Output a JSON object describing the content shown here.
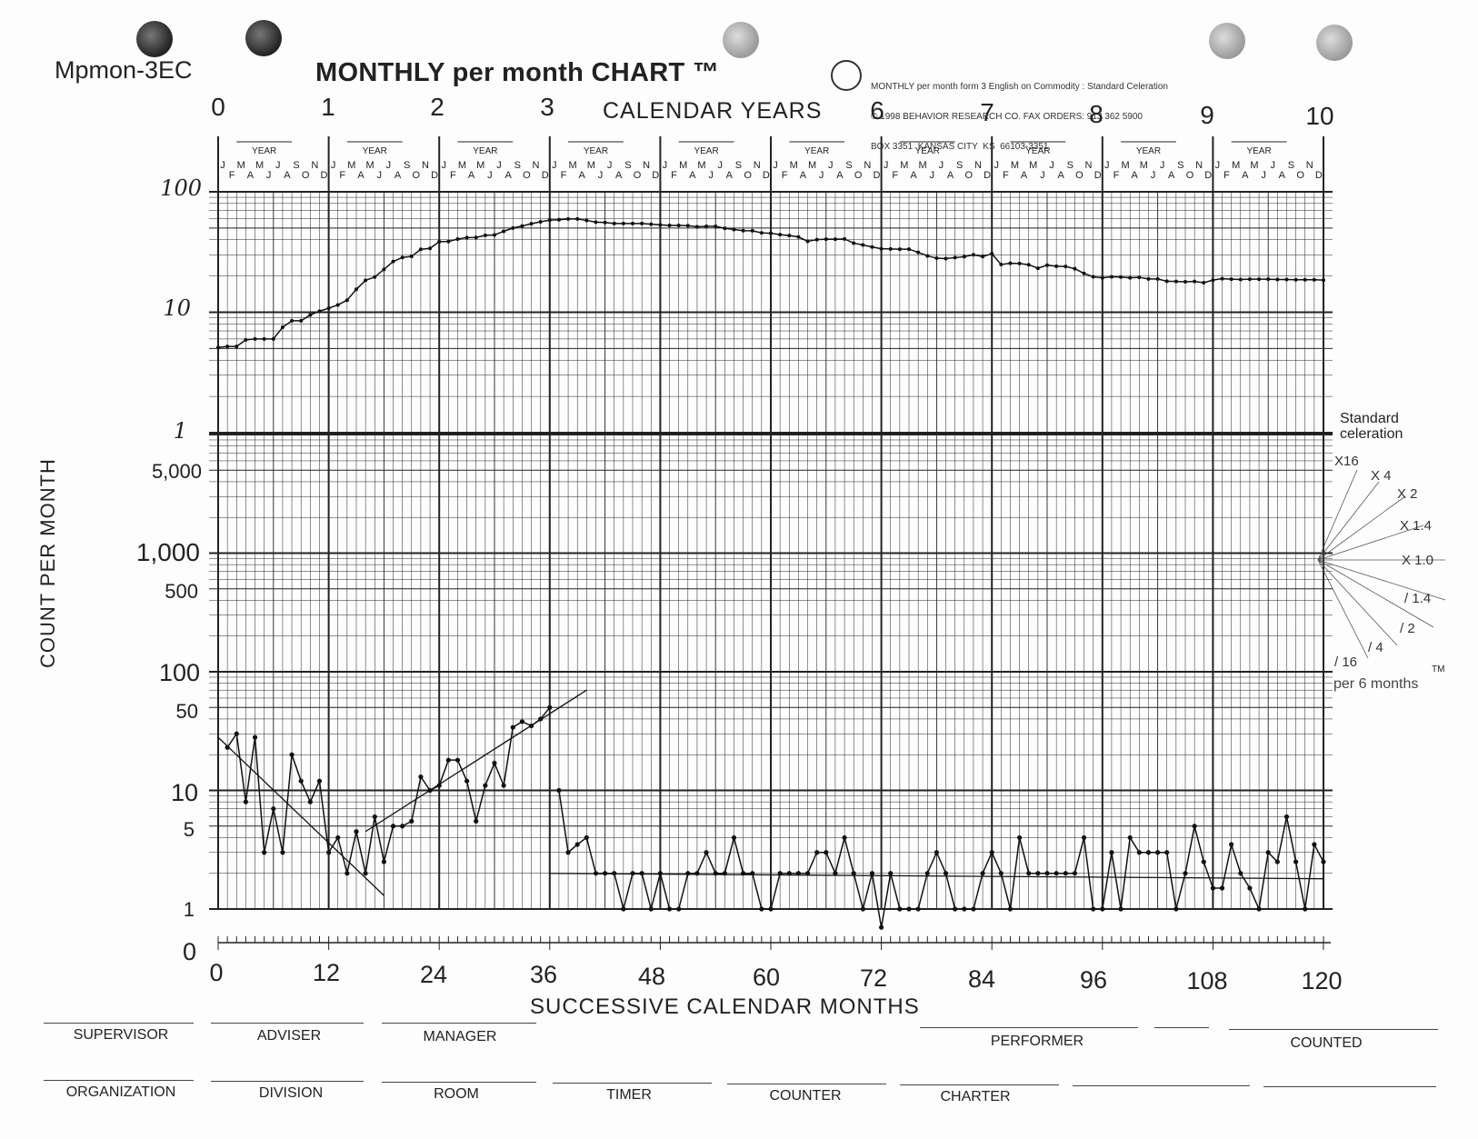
{
  "header": {
    "form_code": "Mpmon-3EC",
    "title": "MONTHLY per month CHART ™",
    "copyright": [
      "MONTHLY per month form 3 English on Commodity : Standard Celeration",
      "© 1998 BEHAVIOR RESEARCH CO. FAX ORDERS: 913 362 5900",
      "BOX 3351  KANSAS CITY  KS  66103-3351"
    ],
    "calendar_years_label": "CALENDAR YEARS",
    "year_numbers": [
      "0",
      "1",
      "2",
      "3",
      "6",
      "7",
      "8",
      "9",
      "10"
    ],
    "year_word": "YEAR",
    "month_row_top": [
      "J",
      "M",
      "M",
      "J",
      "S",
      "N"
    ],
    "month_row_bottom": [
      "F",
      "A",
      "J",
      "A",
      "O",
      "D"
    ]
  },
  "axes": {
    "ylabel": "COUNT PER MONTH",
    "xlabel": "SUCCESSIVE CALENDAR MONTHS",
    "upper_ticks": [
      "100",
      "10",
      "1"
    ],
    "lower_ticks": [
      "5,000",
      "1,000",
      "500",
      "100",
      "50",
      "10",
      "5",
      "1",
      "0"
    ],
    "x_ticks": [
      "0",
      "12",
      "24",
      "36",
      "48",
      "60",
      "72",
      "84",
      "96",
      "108",
      "120"
    ]
  },
  "legend": {
    "title": "Standard celeration",
    "fans": [
      "X16",
      "X 4",
      "X 2",
      "X 1.4",
      "X 1.0",
      "/ 1.4",
      "/ 2",
      "/ 4",
      "/ 16"
    ],
    "per": "per 6 months",
    "tm": "TM"
  },
  "footer": {
    "row1": [
      "SUPERVISOR",
      "ADVISER",
      "MANAGER",
      "PERFORMER",
      "COUNTED"
    ],
    "row2": [
      "ORGANIZATION",
      "DIVISION",
      "ROOM",
      "TIMER",
      "COUNTER",
      "CHARTER"
    ]
  },
  "chart_data": {
    "type": "line",
    "xlabel": "SUCCESSIVE CALENDAR MONTHS",
    "ylabel": "COUNT PER MONTH",
    "xlim": [
      0,
      120
    ],
    "upper_scale": {
      "ylim": [
        0.6,
        100
      ],
      "log": true
    },
    "lower_scale": {
      "ylim": [
        1,
        10000
      ],
      "log": true
    },
    "series": [
      {
        "scale": "upper",
        "x": [
          0,
          1,
          2,
          3,
          4,
          5,
          6,
          7,
          8,
          9,
          10,
          11,
          12,
          13,
          14,
          15,
          16,
          17,
          18,
          19,
          20,
          21,
          22,
          23,
          24,
          25,
          26,
          27,
          28,
          29,
          30,
          31,
          32,
          33,
          34,
          35,
          36,
          37,
          38,
          39,
          40,
          41,
          42,
          43,
          44,
          45,
          46,
          47,
          48,
          49,
          50,
          51,
          52,
          53,
          54,
          55,
          56,
          57,
          58,
          59,
          60,
          61,
          62,
          63,
          64,
          65,
          66,
          67,
          68,
          69,
          70,
          71,
          72,
          73,
          74,
          75,
          76,
          77,
          78,
          79,
          80,
          81,
          82,
          83,
          84,
          85,
          86,
          87,
          88,
          89,
          90,
          91,
          92,
          93,
          94,
          95,
          96,
          97,
          98,
          99,
          100,
          101,
          102,
          103,
          104,
          105,
          106,
          107,
          108,
          109,
          110,
          111,
          112,
          113,
          114,
          115,
          116,
          117,
          118,
          119,
          120
        ],
        "values": [
          5.1,
          5.2,
          5.2,
          5.9,
          6.0,
          6.0,
          6.0,
          7.5,
          8.5,
          8.5,
          9.5,
          10.2,
          10.8,
          11.5,
          12.6,
          15.5,
          18.4,
          19.6,
          22.7,
          26.4,
          28.5,
          29.1,
          33.3,
          33.9,
          38.5,
          38.7,
          40.5,
          41.7,
          41.8,
          43.5,
          43.8,
          47.0,
          50.0,
          52.0,
          54.3,
          56.4,
          58.2,
          58.6,
          59.5,
          59.5,
          57.9,
          56.0,
          55.6,
          54.5,
          54.5,
          54.5,
          54.5,
          53.9,
          53.2,
          52.6,
          52.6,
          52.3,
          51.2,
          51.7,
          51.7,
          49.8,
          48.6,
          47.6,
          47.5,
          45.6,
          45.3,
          44.1,
          43.3,
          42.2,
          38.8,
          40.1,
          40.4,
          40.4,
          40.6,
          37.5,
          36.2,
          34.8,
          33.7,
          33.5,
          33.4,
          33.4,
          31.4,
          29.4,
          28.1,
          27.9,
          28.4,
          28.9,
          30.0,
          29.0,
          30.6,
          24.9,
          25.5,
          25.4,
          24.8,
          23.2,
          24.6,
          24.1,
          24.0,
          23.0,
          21.0,
          19.7,
          19.3,
          19.7,
          19.6,
          19.3,
          19.5,
          18.9,
          18.9,
          18.1,
          18.0,
          17.9,
          18.0,
          17.6,
          18.5,
          19.0,
          18.8,
          18.7,
          18.8,
          18.8,
          18.8,
          18.7,
          18.7,
          18.6,
          18.6,
          18.6,
          18.5
        ]
      },
      {
        "scale": "lower",
        "x": [
          1,
          2,
          3,
          4,
          5,
          6,
          7,
          8,
          9,
          10,
          11,
          12,
          13,
          14,
          15,
          16,
          17,
          18,
          19,
          20,
          21,
          22,
          23,
          24,
          25,
          26,
          27,
          28,
          29,
          30,
          31,
          32,
          33,
          34,
          35,
          36
        ],
        "values": [
          23,
          30,
          8,
          28,
          3,
          7,
          3,
          20,
          12,
          8,
          12,
          3,
          4,
          2,
          4.5,
          2,
          6,
          2.5,
          5,
          5,
          5.5,
          13,
          10,
          11,
          18,
          18,
          12,
          5.5,
          11,
          17,
          11,
          34,
          38,
          35,
          40,
          50
        ]
      },
      {
        "scale": "lower",
        "x": [
          37,
          38,
          39,
          40,
          41,
          42,
          43,
          44,
          45,
          46,
          47,
          48,
          49,
          50,
          51,
          52,
          53,
          54,
          55,
          56,
          57,
          58,
          59,
          60,
          61,
          62,
          63,
          64,
          65,
          66,
          67,
          68,
          69,
          70,
          71,
          72,
          73,
          74,
          75,
          76,
          77,
          78,
          79,
          80,
          81,
          82,
          83,
          84,
          85,
          86,
          87,
          88,
          89,
          90,
          91,
          92,
          93,
          94,
          95,
          96,
          97,
          98,
          99,
          100,
          101,
          102,
          103,
          104,
          105,
          106,
          107,
          108,
          109,
          110,
          111,
          112,
          113,
          114,
          115,
          116,
          117,
          118,
          119,
          120
        ],
        "values": [
          10,
          3,
          3.5,
          4,
          2,
          2,
          2,
          1,
          2,
          2,
          1,
          2,
          1,
          1,
          2,
          2,
          3,
          2,
          2,
          4,
          2,
          2,
          1,
          1,
          2,
          2,
          2,
          2,
          3,
          3,
          2,
          4,
          2,
          1,
          2,
          0.7,
          2,
          1,
          1,
          1,
          2,
          3,
          2,
          1,
          1,
          1,
          2,
          3,
          2,
          1,
          4,
          2,
          2,
          2,
          2,
          2,
          2,
          4,
          1,
          1,
          3,
          1,
          4,
          3,
          3,
          3,
          3,
          1,
          2,
          5,
          2.5,
          1.5,
          1.5,
          3.5,
          2,
          1.5,
          1,
          3,
          2.5,
          6,
          2.5,
          1,
          3.5,
          2.5
        ]
      }
    ],
    "annotations": [
      {
        "kind": "trend",
        "scale": "lower",
        "from": [
          0,
          28
        ],
        "to": [
          18,
          1.3
        ]
      },
      {
        "kind": "trend",
        "scale": "lower",
        "from": [
          16,
          4.5
        ],
        "to": [
          40,
          70
        ]
      },
      {
        "kind": "trend",
        "scale": "lower",
        "from": [
          36,
          2
        ],
        "to": [
          120,
          1.8
        ]
      }
    ]
  }
}
